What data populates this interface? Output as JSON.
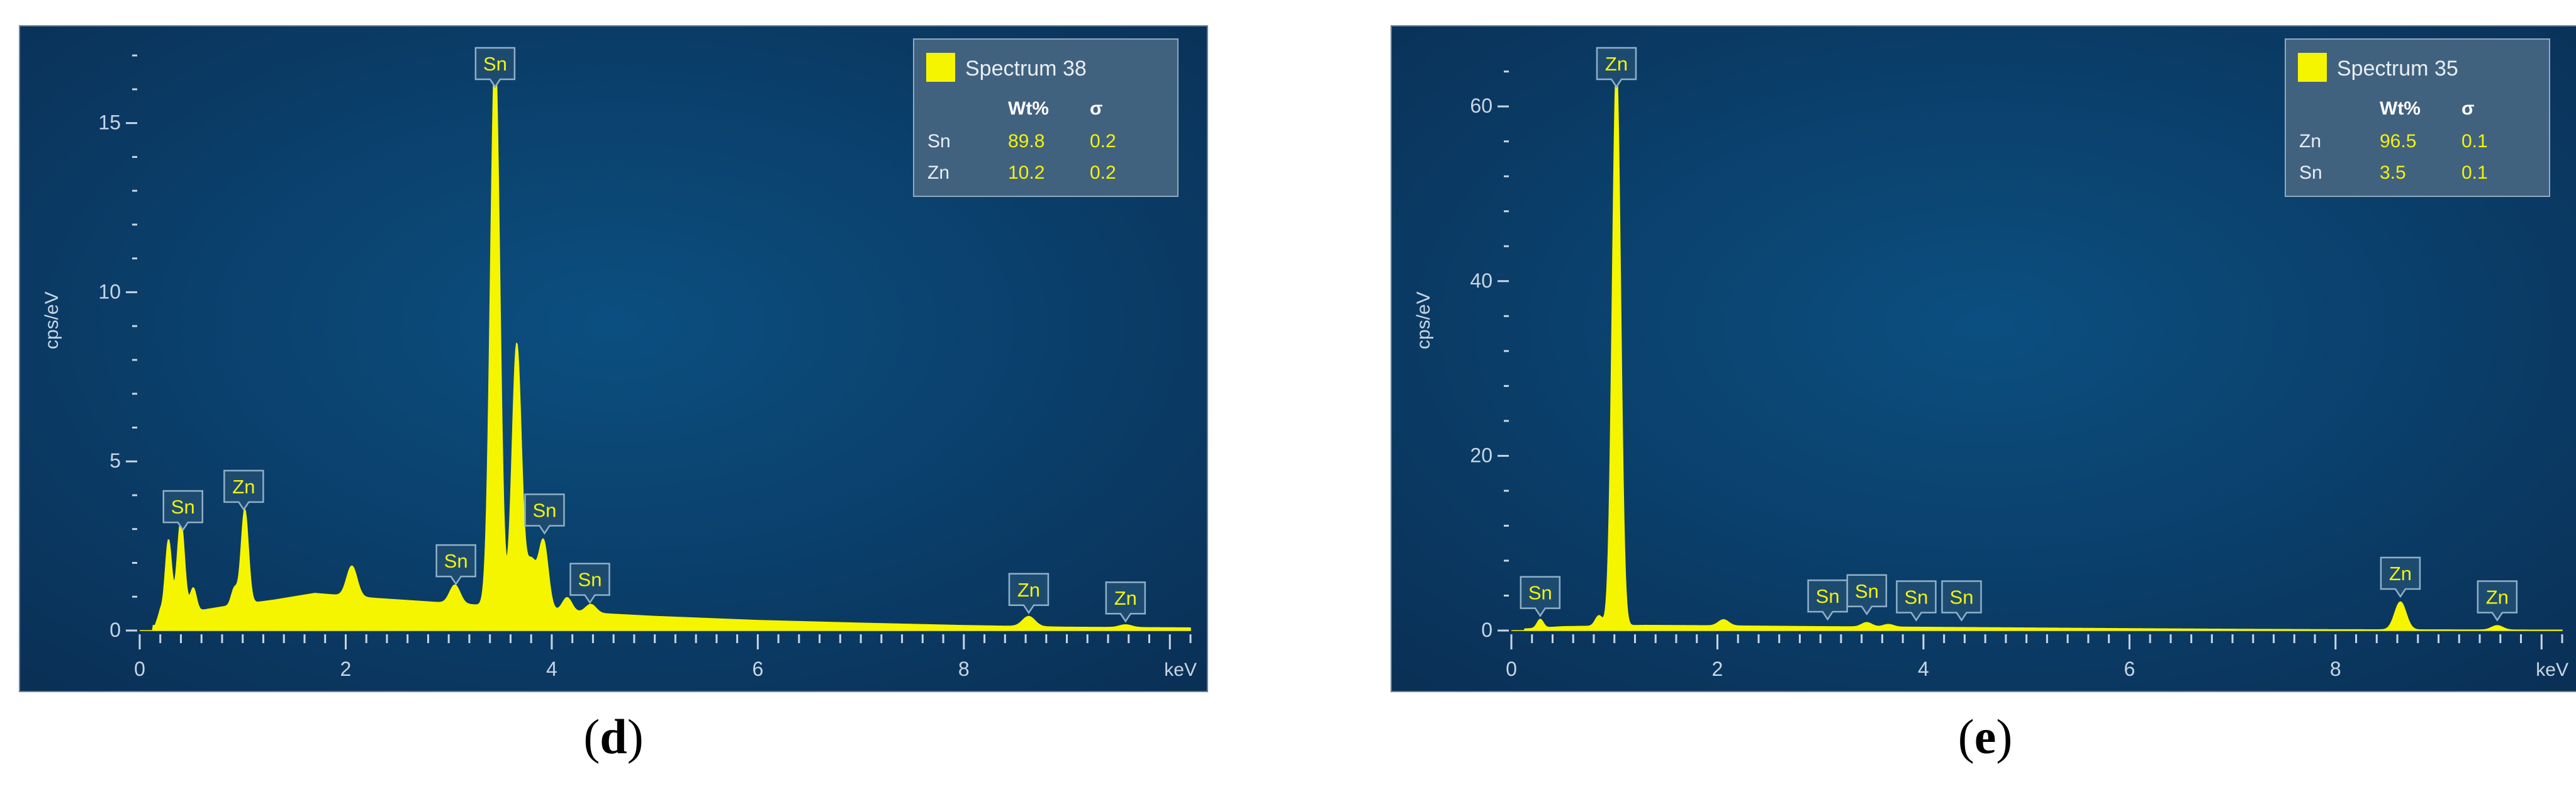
{
  "colors": {
    "background_center": "#0b4f80",
    "background_edge": "#0a2f55",
    "spectrum": "#f5f500",
    "axis_text": "#c9d6e3",
    "legend_box": "#41627f",
    "legend_value_text": "#f3f30c"
  },
  "chart_data": [
    {
      "panel_caption": "d",
      "type": "area",
      "ylabel": "cps/eV",
      "xlabel": "keV",
      "xlim": [
        0,
        10.2
      ],
      "ylim": [
        0,
        17.3
      ],
      "x_ticks": [
        0,
        2,
        4,
        6,
        8
      ],
      "y_ticks": [
        0,
        5,
        10,
        15
      ],
      "grid": false,
      "legend_placement": "top-right",
      "legend": {
        "title": "Spectrum 38",
        "headers": [
          "Wt%",
          "σ"
        ],
        "rows": [
          {
            "element": "Sn",
            "wt": "89.8",
            "sigma": "0.2"
          },
          {
            "element": "Zn",
            "wt": "10.2",
            "sigma": "0.2"
          }
        ]
      },
      "peak_labels": [
        {
          "label": "Sn",
          "x": 0.42,
          "y": 2.9
        },
        {
          "label": "Zn",
          "x": 1.01,
          "y": 3.5
        },
        {
          "label": "Sn",
          "x": 3.07,
          "y": 1.3
        },
        {
          "label": "Sn",
          "x": 3.45,
          "y": 17.2
        },
        {
          "label": "Sn",
          "x": 3.93,
          "y": 2.8
        },
        {
          "label": "Sn",
          "x": 4.37,
          "y": 0.75
        },
        {
          "label": "Zn",
          "x": 8.63,
          "y": 0.45
        },
        {
          "label": "Zn",
          "x": 9.57,
          "y": 0.2
        }
      ],
      "baseline": [
        [
          0.15,
          0.15
        ],
        [
          0.2,
          0.6
        ],
        [
          0.5,
          0.55
        ],
        [
          0.8,
          0.7
        ],
        [
          1.3,
          0.9
        ],
        [
          1.7,
          1.1
        ],
        [
          2.3,
          0.95
        ],
        [
          2.8,
          0.85
        ],
        [
          3.3,
          0.75
        ],
        [
          3.8,
          0.65
        ],
        [
          4.5,
          0.5
        ],
        [
          5.0,
          0.42
        ],
        [
          6.0,
          0.3
        ],
        [
          7.0,
          0.22
        ],
        [
          8.0,
          0.15
        ],
        [
          9.0,
          0.1
        ],
        [
          10.2,
          0.08
        ]
      ],
      "peaks": [
        {
          "center": 0.28,
          "height": 2.1,
          "width": 0.03
        },
        {
          "center": 0.4,
          "height": 2.7,
          "width": 0.035
        },
        {
          "center": 0.52,
          "height": 0.7,
          "width": 0.03
        },
        {
          "center": 0.92,
          "height": 0.5,
          "width": 0.03
        },
        {
          "center": 1.02,
          "height": 2.8,
          "width": 0.035
        },
        {
          "center": 2.06,
          "height": 0.9,
          "width": 0.05
        },
        {
          "center": 3.06,
          "height": 0.55,
          "width": 0.05
        },
        {
          "center": 3.45,
          "height": 16.5,
          "width": 0.045
        },
        {
          "center": 3.66,
          "height": 7.8,
          "width": 0.045
        },
        {
          "center": 3.8,
          "height": 1.4,
          "width": 0.05
        },
        {
          "center": 3.92,
          "height": 2.0,
          "width": 0.045
        },
        {
          "center": 4.15,
          "height": 0.4,
          "width": 0.045
        },
        {
          "center": 4.38,
          "height": 0.25,
          "width": 0.05
        },
        {
          "center": 8.63,
          "height": 0.3,
          "width": 0.06
        },
        {
          "center": 9.57,
          "height": 0.08,
          "width": 0.06
        }
      ]
    },
    {
      "panel_caption": "e",
      "type": "area",
      "ylabel": "cps/eV",
      "xlabel": "keV",
      "xlim": [
        0,
        10.2
      ],
      "ylim": [
        0,
        67
      ],
      "x_ticks": [
        0,
        2,
        4,
        6,
        8
      ],
      "y_ticks": [
        0,
        20,
        40,
        60
      ],
      "grid": false,
      "legend_placement": "top-right",
      "legend": {
        "title": "Spectrum 35",
        "headers": [
          "Wt%",
          "σ"
        ],
        "rows": [
          {
            "element": "Zn",
            "wt": "96.5",
            "sigma": "0.1"
          },
          {
            "element": "Sn",
            "wt": "3.5",
            "sigma": "0.1"
          }
        ]
      },
      "peak_labels": [
        {
          "label": "Sn",
          "x": 0.28,
          "y": 1.4
        },
        {
          "label": "Zn",
          "x": 1.02,
          "y": 66.8
        },
        {
          "label": "Sn",
          "x": 3.07,
          "y": 1.0
        },
        {
          "label": "Sn",
          "x": 3.45,
          "y": 1.6
        },
        {
          "label": "Sn",
          "x": 3.93,
          "y": 0.9
        },
        {
          "label": "Sn",
          "x": 4.37,
          "y": 0.9
        },
        {
          "label": "Zn",
          "x": 8.63,
          "y": 3.6
        },
        {
          "label": "Zn",
          "x": 9.57,
          "y": 0.9
        }
      ],
      "baseline": [
        [
          0.15,
          0.2
        ],
        [
          0.5,
          0.45
        ],
        [
          1.3,
          0.6
        ],
        [
          2.0,
          0.55
        ],
        [
          3.0,
          0.45
        ],
        [
          4.0,
          0.38
        ],
        [
          5.0,
          0.3
        ],
        [
          6.0,
          0.22
        ],
        [
          7.0,
          0.15
        ],
        [
          8.0,
          0.1
        ],
        [
          9.0,
          0.08
        ],
        [
          10.2,
          0.05
        ]
      ],
      "peaks": [
        {
          "center": 0.28,
          "height": 1.0,
          "width": 0.03
        },
        {
          "center": 0.85,
          "height": 1.2,
          "width": 0.035
        },
        {
          "center": 1.02,
          "height": 64.5,
          "width": 0.04
        },
        {
          "center": 2.06,
          "height": 0.7,
          "width": 0.05
        },
        {
          "center": 3.45,
          "height": 0.5,
          "width": 0.05
        },
        {
          "center": 3.66,
          "height": 0.3,
          "width": 0.05
        },
        {
          "center": 8.63,
          "height": 3.2,
          "width": 0.055
        },
        {
          "center": 9.57,
          "height": 0.5,
          "width": 0.055
        }
      ]
    }
  ]
}
